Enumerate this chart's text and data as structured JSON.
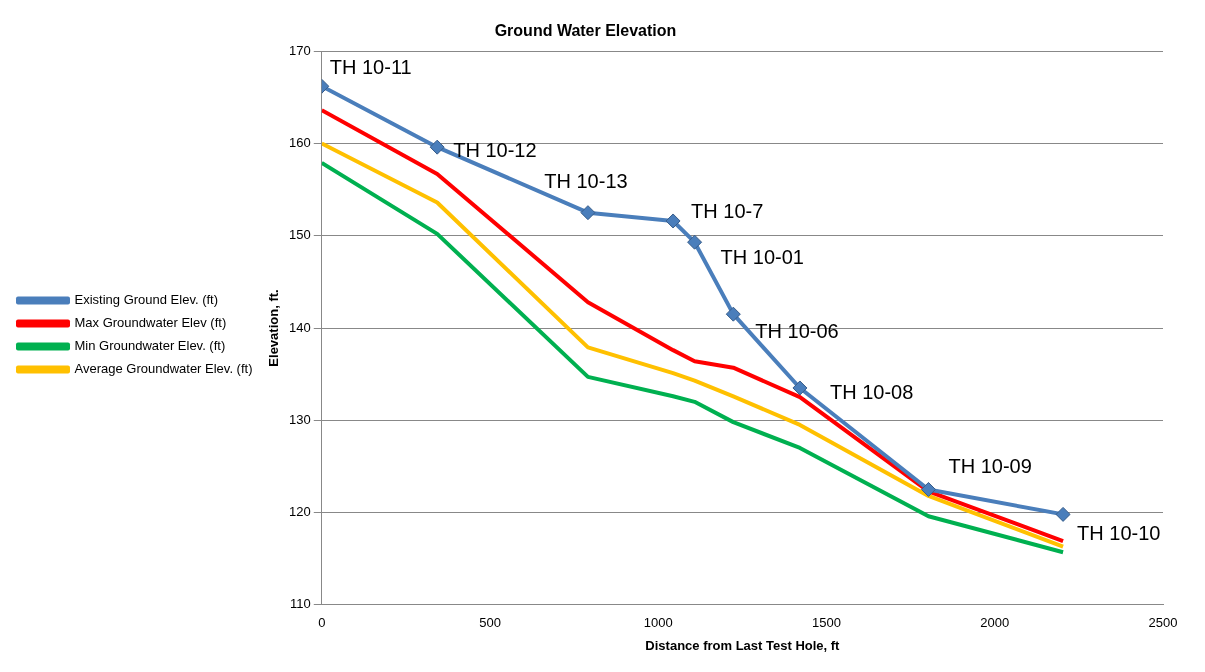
{
  "chart_data": {
    "type": "line",
    "title": "Ground Water Elevation",
    "xlabel": "Distance from Last Test Hole, ft",
    "ylabel": "Elevation, ft.",
    "x": [
      0,
      343,
      791,
      1044,
      1108,
      1223,
      1421,
      1803,
      2203
    ],
    "series": [
      {
        "name": "Existing Ground Elev. (ft)",
        "color": "#4a7ebb",
        "marker": "diamond",
        "values": [
          166.2,
          159.6,
          152.5,
          151.6,
          149.3,
          141.5,
          133.5,
          122.5,
          119.8
        ]
      },
      {
        "name": "Max Groundwater Elev (ft)",
        "color": "#ff0000",
        "marker": "none",
        "values": [
          163.6,
          156.7,
          142.8,
          137.6,
          136.4,
          135.7,
          132.5,
          122.3,
          116.9
        ]
      },
      {
        "name": "Min Groundwater Elev. (ft)",
        "color": "#00b050",
        "marker": "none",
        "values": [
          157.9,
          150.2,
          134.7,
          132.6,
          132.0,
          129.8,
          127.0,
          119.6,
          115.7
        ]
      },
      {
        "name": "Average Groundwater Elev. (ft)",
        "color": "#ffc000",
        "marker": "none",
        "values": [
          160.0,
          153.6,
          137.9,
          135.1,
          134.3,
          132.6,
          129.5,
          121.8,
          116.3
        ]
      }
    ],
    "annotations": [
      {
        "text": "TH 10-11",
        "x": 0,
        "y": 166.2
      },
      {
        "text": "TH 10-12",
        "x": 343,
        "y": 159.6
      },
      {
        "text": "TH 10-13",
        "x": 791,
        "y": 152.5
      },
      {
        "text": "TH 10-7",
        "x": 1044,
        "y": 151.6
      },
      {
        "text": "TH 10-01",
        "x": 1108,
        "y": 149.3
      },
      {
        "text": "TH 10-06",
        "x": 1223,
        "y": 141.5
      },
      {
        "text": "TH 10-08",
        "x": 1421,
        "y": 133.5
      },
      {
        "text": "TH 10-09",
        "x": 1803,
        "y": 122.5
      },
      {
        "text": "TH 10-10",
        "x": 2203,
        "y": 119.8
      }
    ],
    "xlim": [
      0,
      2500
    ],
    "xticks": [
      0,
      500,
      1000,
      1500,
      2000,
      2500
    ],
    "ylim": [
      110,
      170
    ],
    "yticks": [
      110,
      120,
      130,
      140,
      150,
      160,
      170
    ],
    "grid": "y",
    "legend": "left",
    "line_style": "solid"
  }
}
